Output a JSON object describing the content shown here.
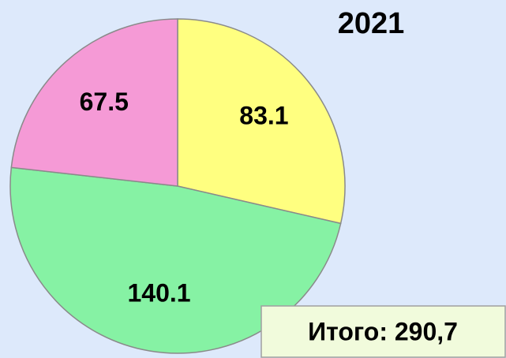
{
  "chart_data": {
    "type": "pie",
    "title": "2021",
    "categories": [
      null,
      null,
      null
    ],
    "values": [
      83.1,
      140.1,
      67.5
    ],
    "colors": [
      "#ffff80",
      "#86f2a4",
      "#f59ad6"
    ],
    "annotation": "Итого: 290,7"
  }
}
